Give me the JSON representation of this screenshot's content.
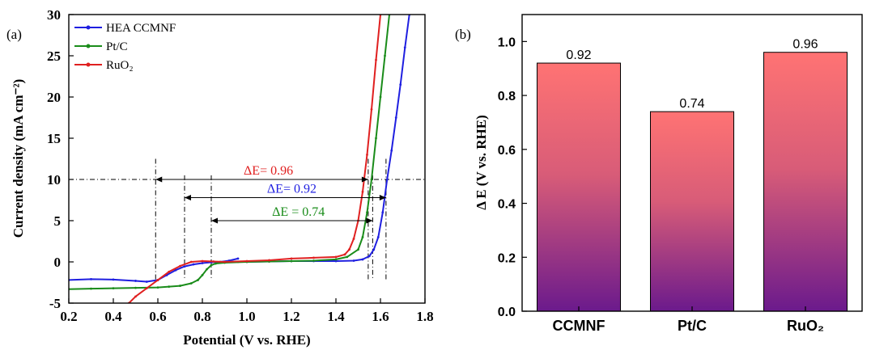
{
  "chart_data": [
    {
      "panel_label": "(a)",
      "type": "line",
      "xlabel": "Potential (V vs. RHE)",
      "ylabel": "Current density (mA cm⁻²)",
      "xlim": [
        0.2,
        1.8
      ],
      "ylim": [
        -5,
        30
      ],
      "x_ticks": [
        "0.2",
        "0.4",
        "0.6",
        "0.8",
        "1.0",
        "1.2",
        "1.4",
        "1.6",
        "1.8"
      ],
      "y_ticks": [
        "-5",
        "0",
        "5",
        "10",
        "15",
        "20",
        "25",
        "30"
      ],
      "legend_position": "top-left",
      "series": [
        {
          "name": "HEA CCMNF",
          "color": "#1f1fe0",
          "x": [
            0.2,
            0.3,
            0.4,
            0.5,
            0.55,
            0.6,
            0.64,
            0.68,
            0.72,
            0.76,
            0.8,
            0.84,
            0.88,
            0.92,
            0.96
          ],
          "y": [
            -2.2,
            -2.1,
            -2.15,
            -2.3,
            -2.4,
            -2.2,
            -1.6,
            -1.0,
            -0.55,
            -0.3,
            -0.15,
            -0.05,
            0.0,
            0.15,
            0.4
          ]
        },
        {
          "name": "HEA CCMNF",
          "color": "#1f1fe0",
          "x": [
            0.96,
            1.0,
            1.1,
            1.2,
            1.3,
            1.4,
            1.48,
            1.52,
            1.55,
            1.57,
            1.59,
            1.61,
            1.63,
            1.65,
            1.67,
            1.69,
            1.71,
            1.73
          ],
          "y": [
            0.0,
            0.0,
            0.05,
            0.1,
            0.1,
            0.1,
            0.15,
            0.3,
            0.7,
            1.5,
            3.0,
            6.0,
            10.0,
            13.5,
            17.5,
            21.5,
            26.0,
            30.0
          ]
        },
        {
          "name": "Pt/C",
          "color": "#1a8c1a",
          "x": [
            0.2,
            0.3,
            0.4,
            0.5,
            0.6,
            0.65,
            0.7,
            0.75,
            0.78,
            0.8,
            0.82,
            0.84,
            0.86,
            0.9,
            1.0,
            1.1,
            1.2,
            1.3,
            1.4,
            1.45,
            1.5,
            1.52,
            1.54,
            1.56,
            1.58,
            1.6,
            1.62,
            1.64
          ],
          "y": [
            -3.3,
            -3.25,
            -3.2,
            -3.15,
            -3.1,
            -3.0,
            -2.9,
            -2.6,
            -2.2,
            -1.6,
            -0.9,
            -0.4,
            -0.2,
            -0.1,
            0.0,
            0.05,
            0.1,
            0.15,
            0.3,
            0.6,
            1.5,
            3.0,
            6.0,
            10.0,
            15.0,
            20.0,
            25.0,
            30.0
          ]
        },
        {
          "name": "RuO₂",
          "color": "#e02020",
          "x": [
            0.47,
            0.5,
            0.55,
            0.6,
            0.65,
            0.7,
            0.75,
            0.8,
            0.85,
            0.9,
            1.0,
            1.1,
            1.2,
            1.3,
            1.4,
            1.44,
            1.46,
            1.48,
            1.5,
            1.52,
            1.54,
            1.56,
            1.58,
            1.6
          ],
          "y": [
            -5.0,
            -4.2,
            -3.2,
            -2.2,
            -1.2,
            -0.5,
            0.0,
            0.1,
            0.05,
            0.0,
            0.1,
            0.2,
            0.4,
            0.5,
            0.6,
            0.9,
            1.5,
            2.8,
            5.0,
            8.5,
            13.0,
            18.5,
            24.5,
            30.0
          ]
        }
      ],
      "reference_line": {
        "y": 10
      },
      "vertical_guides": [
        0.59,
        0.72,
        0.84,
        1.545,
        1.565,
        1.625
      ],
      "annotations": [
        {
          "text": "ΔE= 0.96",
          "color": "#e02020",
          "from": 0.59,
          "to": 1.545,
          "y": 10
        },
        {
          "text": "ΔE= 0.92",
          "color": "#1f1fe0",
          "from": 0.72,
          "to": 1.625,
          "y": 7.8
        },
        {
          "text": "ΔE = 0.74",
          "color": "#1a8c1a",
          "from": 0.84,
          "to": 1.565,
          "y": 5.0
        }
      ]
    },
    {
      "panel_label": "(b)",
      "type": "bar",
      "categories": [
        "CCMNF",
        "Pt/C",
        "RuO₂"
      ],
      "values": [
        0.92,
        0.74,
        0.96
      ],
      "value_labels": [
        "0.92",
        "0.74",
        "0.96"
      ],
      "ylabel": "Δ E (V vs. RHE)",
      "ylim": [
        0.0,
        1.1
      ],
      "y_ticks": [
        "0.0",
        "0.2",
        "0.4",
        "0.6",
        "0.8",
        "1.0"
      ],
      "bar_gradient": {
        "top": "#ff7373",
        "bottom": "#6b1a8c"
      }
    }
  ]
}
